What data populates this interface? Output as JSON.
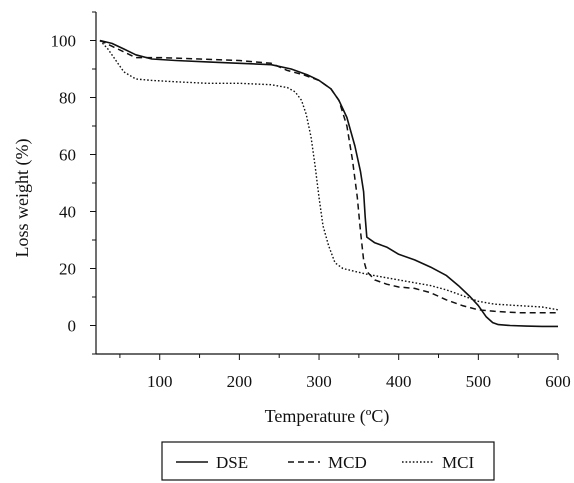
{
  "chart_data": {
    "type": "line",
    "title": "",
    "xlabel": "Temperature (ºC)",
    "ylabel": "Loss weight (%)",
    "xlim": [
      20,
      600
    ],
    "ylim": [
      -10,
      110
    ],
    "xticks": [
      100,
      200,
      300,
      400,
      500,
      600
    ],
    "yticks": [
      0,
      20,
      40,
      60,
      80,
      100
    ],
    "legend_position": "bottom",
    "grid": false,
    "series": [
      {
        "name": "DSE",
        "style": "solid",
        "x": [
          25,
          40,
          55,
          70,
          90,
          120,
          160,
          200,
          240,
          265,
          285,
          300,
          315,
          325,
          335,
          345,
          352,
          356,
          358,
          360,
          370,
          385,
          400,
          420,
          440,
          460,
          475,
          490,
          500,
          510,
          518,
          525,
          540,
          560,
          580,
          600
        ],
        "y": [
          100,
          99,
          97,
          95,
          93.5,
          93,
          92.5,
          92,
          91.5,
          90,
          88,
          86,
          83,
          79,
          73,
          63,
          54,
          47,
          38,
          31,
          29,
          27.5,
          25,
          23,
          20.5,
          17.5,
          14,
          10,
          7,
          3,
          1,
          0.3,
          0,
          -0.2,
          -0.3,
          -0.3
        ]
      },
      {
        "name": "MCD",
        "style": "dashed",
        "x": [
          25,
          40,
          55,
          70,
          100,
          150,
          200,
          240,
          260,
          280,
          300,
          315,
          325,
          335,
          342,
          348,
          352,
          356,
          360,
          370,
          385,
          400,
          420,
          440,
          460,
          480,
          500,
          520,
          550,
          600
        ],
        "y": [
          100,
          98,
          96,
          94,
          94,
          93.5,
          93,
          92,
          89.5,
          88,
          86,
          83,
          79,
          70,
          58,
          45,
          33,
          23,
          19,
          16,
          14.5,
          13.5,
          13,
          11.5,
          9,
          7,
          5.5,
          5,
          4.5,
          4.5
        ]
      },
      {
        "name": "MCI",
        "style": "dotted",
        "x": [
          25,
          35,
          45,
          55,
          70,
          90,
          120,
          160,
          200,
          240,
          260,
          270,
          278,
          284,
          290,
          295,
          300,
          305,
          312,
          320,
          330,
          345,
          360,
          380,
          400,
          420,
          440,
          460,
          480,
          500,
          520,
          550,
          580,
          600
        ],
        "y": [
          100,
          97,
          93,
          89,
          86.5,
          86,
          85.5,
          85,
          85,
          84.5,
          83.5,
          82,
          79,
          74,
          66,
          56,
          45,
          35,
          28,
          22,
          20,
          19,
          18,
          17,
          16,
          15,
          14,
          12.5,
          10.5,
          8.5,
          7.5,
          7,
          6.5,
          5.5
        ]
      }
    ]
  }
}
